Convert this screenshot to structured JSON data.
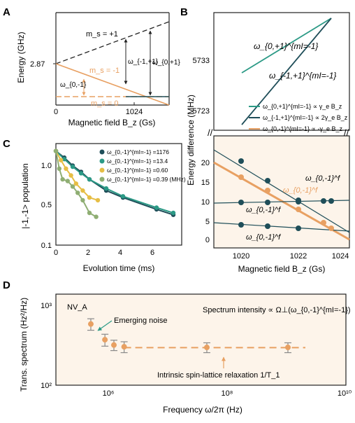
{
  "colors": {
    "teal": "#2c9a86",
    "dark_teal": "#1f4e59",
    "orange": "#e8a062",
    "yellow": "#e6be45",
    "green_gray": "#8fae73",
    "peach_bg": "#fdf4ea",
    "axis": "#222222"
  },
  "panels": {
    "A": {
      "letter": "A",
      "ylabel": "Energy (GHz)",
      "ytick": "2.87",
      "xtick0": "0",
      "xtick1": "1024",
      "xlabel": "Magnetic field B_z (Gs)",
      "level_plus": "m_s = +1",
      "level_minus": "m_s = -1",
      "level_zero": "m_s = 0",
      "gap_a": "ω_{-1,+1}",
      "gap_b": "ω_{0,+1}",
      "gap_c": "ω_{0,-1}"
    },
    "B": {
      "letter": "B",
      "ylabel": "Energy difference (MHz)",
      "upper_ticks": [
        "5733",
        "5723"
      ],
      "lower_ticks": [
        "20",
        "15",
        "10",
        "5",
        "0"
      ],
      "x_ticks": [
        "1020",
        "1022",
        "1024"
      ],
      "xlabel": "Magnetic field B_z (Gs)",
      "label_0p1": "ω_{0,+1}^{mI=-1}",
      "label_m1p1": "ω_{-1,+1}^{mI=-1}",
      "legend": [
        "ω_{0,+1}^{mI=-1} ∝ γ_e B_z",
        "ω_{-1,+1}^{mI=-1} ∝ 2γ_e B_z",
        "ω_{0,-1}^{mI=-1} ∝ -γ_e B_z"
      ],
      "curve_labels": [
        "ω_{0,-1}^f",
        "ω_{0,-1}^f",
        "ω_{0,-1}^f",
        "ω_{0,-1}^f"
      ]
    },
    "C": {
      "letter": "C",
      "ylabel": "|-1,-1> population",
      "yticks": [
        "1.0",
        "0.5",
        "0.1"
      ],
      "xticks": [
        "0",
        "2",
        "4",
        "6"
      ],
      "xlabel": "Evolution time (ms)",
      "legend": [
        {
          "label": "ω_{0,-1}^{mI=-1} =1176"
        },
        {
          "label": "ω_{0,-1}^{mI=-1} =13.4"
        },
        {
          "label": "ω_{0,-1}^{mI=-1} =0.60"
        },
        {
          "label": "ω_{0,-1}^{mI=-1} =0.39 (MHz)"
        }
      ]
    },
    "D": {
      "letter": "D",
      "ylabel": "Trans. spectrum (Hz²/Hz)",
      "yticks": [
        "10³",
        "10²"
      ],
      "xticks": [
        "10⁶",
        "10⁸",
        "10¹⁰"
      ],
      "xlabel": "Frequency ω/2π (Hz)",
      "tag": "NV_A",
      "title": "Spectrum intensity ∝ Ω⊥(ω_{0,-1}^{mI=-1})",
      "annotation1": "Emerging noise",
      "annotation2": "Intrinsic spin-lattice relaxation 1/T_1"
    }
  },
  "chart_data": [
    {
      "panel": "C",
      "type": "scatter",
      "xlabel": "Evolution time (ms)",
      "ylabel": "|-1,-1> population",
      "xlim": [
        0,
        7.5
      ],
      "ylim": [
        0.1,
        1.2
      ],
      "ylog": true,
      "series": [
        {
          "name": "ω_{0,-1}^{mI=-1} =1176",
          "color": "#1f4e59",
          "points": [
            [
              0,
              1.0
            ],
            [
              0.5,
              0.85
            ],
            [
              1,
              0.7
            ],
            [
              1.5,
              0.6
            ],
            [
              2,
              0.5
            ],
            [
              3,
              0.38
            ],
            [
              4,
              0.32
            ],
            [
              6,
              0.24
            ],
            [
              7,
              0.21
            ]
          ]
        },
        {
          "name": "ω_{0,-1}^{mI=-1} =13.4",
          "color": "#2c9a86",
          "points": [
            [
              0,
              1.0
            ],
            [
              0.5,
              0.82
            ],
            [
              1,
              0.68
            ],
            [
              1.5,
              0.58
            ],
            [
              2,
              0.5
            ],
            [
              3,
              0.4
            ],
            [
              4,
              0.33
            ],
            [
              6,
              0.25
            ],
            [
              7,
              0.22
            ]
          ]
        },
        {
          "name": "ω_{0,-1}^{mI=-1} =0.60",
          "color": "#e6be45",
          "points": [
            [
              0,
              1.0
            ],
            [
              0.3,
              0.8
            ],
            [
              0.6,
              0.65
            ],
            [
              0.9,
              0.55
            ],
            [
              1.2,
              0.45
            ],
            [
              1.6,
              0.38
            ],
            [
              2,
              0.32
            ],
            [
              2.5,
              0.3
            ]
          ]
        },
        {
          "name": "ω_{0,-1}^{mI=-1} =0.39 (MHz)",
          "color": "#8fae73",
          "points": [
            [
              0,
              1.0
            ],
            [
              0.2,
              0.65
            ],
            [
              0.4,
              0.5
            ],
            [
              0.7,
              0.48
            ],
            [
              1,
              0.42
            ],
            [
              1.3,
              0.36
            ],
            [
              1.6,
              0.3
            ],
            [
              2,
              0.22
            ],
            [
              2.4,
              0.2
            ]
          ]
        }
      ]
    },
    {
      "panel": "D",
      "type": "scatter",
      "xlabel": "Frequency ω/2π (Hz)",
      "ylabel": "Trans. spectrum (Hz²/Hz)",
      "xlog": true,
      "ylog": true,
      "xlim": [
        100000,
        10000000000
      ],
      "ylim": [
        100,
        1300
      ],
      "points": [
        {
          "x": 400000,
          "y": 560,
          "err": 90
        },
        {
          "x": 700000,
          "y": 360,
          "err": 60
        },
        {
          "x": 1000000,
          "y": 310,
          "err": 45
        },
        {
          "x": 1500000,
          "y": 295,
          "err": 45
        },
        {
          "x": 40000000,
          "y": 290,
          "err": 40
        },
        {
          "x": 1000000000,
          "y": 290,
          "err": 40
        }
      ],
      "baseline": 288
    }
  ]
}
